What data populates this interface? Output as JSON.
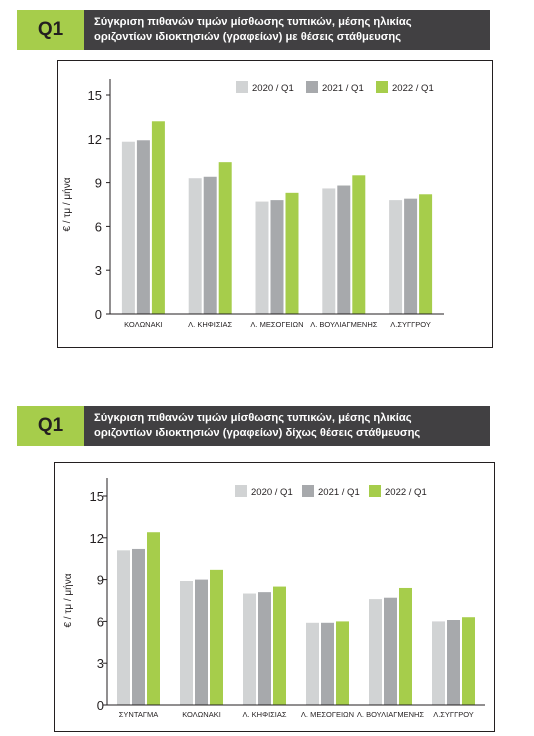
{
  "colors": {
    "s2020": "#d1d3d4",
    "s2021": "#a7a9ac",
    "s2022": "#a6cd4b",
    "axis": "#231f20"
  },
  "charts": [
    {
      "badge": "Q1",
      "title_line1": "Σύγκριση πιθανών τιμών μίσθωσης τυπικών, μέσης ηλικίας",
      "title_line2": "οριζοντίων ιδιοκτησιών (γραφείων) με θέσεις στάθμευσης"
    },
    {
      "badge": "Q1",
      "title_line1": "Σύγκριση πιθανών τιμών μίσθωσης τυπικών, μέσης ηλικίας",
      "title_line2": "οριζοντίων ιδιοκτησιών (γραφείων) δίχως θέσεις στάθμευσης"
    }
  ],
  "chart_data": [
    {
      "type": "bar",
      "title": "Σύγκριση πιθανών τιμών μίσθωσης τυπικών, μέσης ηλικίας οριζοντίων ιδιοκτησιών (γραφείων) με θέσεις στάθμευσης",
      "ylabel": "€ / τμ / μήνα",
      "ylim": [
        0,
        15
      ],
      "yticks": [
        "0",
        "3",
        "6",
        "9",
        "12",
        "15"
      ],
      "legend_position": "top-right",
      "grid": false,
      "categories": [
        "ΚΟΛΩΝΑΚΙ",
        "Λ. ΚΗΦΙΣΙΑΣ",
        "Λ. ΜΕΣΟΓΕΙΩΝ",
        "Λ. ΒΟΥΛΙΑΓΜΕΝΗΣ",
        "Λ.ΣΥΓΓΡΟΥ"
      ],
      "series": [
        {
          "name": "2020 / Q1",
          "values": [
            11.8,
            9.3,
            7.7,
            8.6,
            7.8
          ]
        },
        {
          "name": "2021 / Q1",
          "values": [
            11.9,
            9.4,
            7.8,
            8.8,
            7.9
          ]
        },
        {
          "name": "2022 / Q1",
          "values": [
            13.2,
            10.4,
            8.3,
            9.5,
            8.2
          ]
        }
      ]
    },
    {
      "type": "bar",
      "title": "Σύγκριση πιθανών τιμών μίσθωσης τυπικών, μέσης ηλικίας οριζοντίων ιδιοκτησιών (γραφείων) δίχως θέσεις στάθμευσης",
      "ylabel": "€ / τμ / μήνα",
      "ylim": [
        0,
        15
      ],
      "yticks": [
        "0",
        "3",
        "6",
        "9",
        "12",
        "15"
      ],
      "legend_position": "top-right",
      "grid": false,
      "categories": [
        "ΣΥΝΤΑΓΜΑ",
        "ΚΟΛΩΝΑΚΙ",
        "Λ. ΚΗΦΙΣΙΑΣ",
        "Λ. ΜΕΣΟΓΕΙΩΝ",
        "Λ. ΒΟΥΛΙΑΓΜΕΝΗΣ",
        "Λ.ΣΥΓΓΡΟΥ"
      ],
      "series": [
        {
          "name": "2020 / Q1",
          "values": [
            11.1,
            8.9,
            8.0,
            5.9,
            7.6,
            6.0
          ]
        },
        {
          "name": "2021 / Q1",
          "values": [
            11.2,
            9.0,
            8.1,
            5.9,
            7.7,
            6.1
          ]
        },
        {
          "name": "2022 / Q1",
          "values": [
            12.4,
            9.7,
            8.5,
            6.0,
            8.4,
            6.3
          ]
        }
      ]
    }
  ]
}
